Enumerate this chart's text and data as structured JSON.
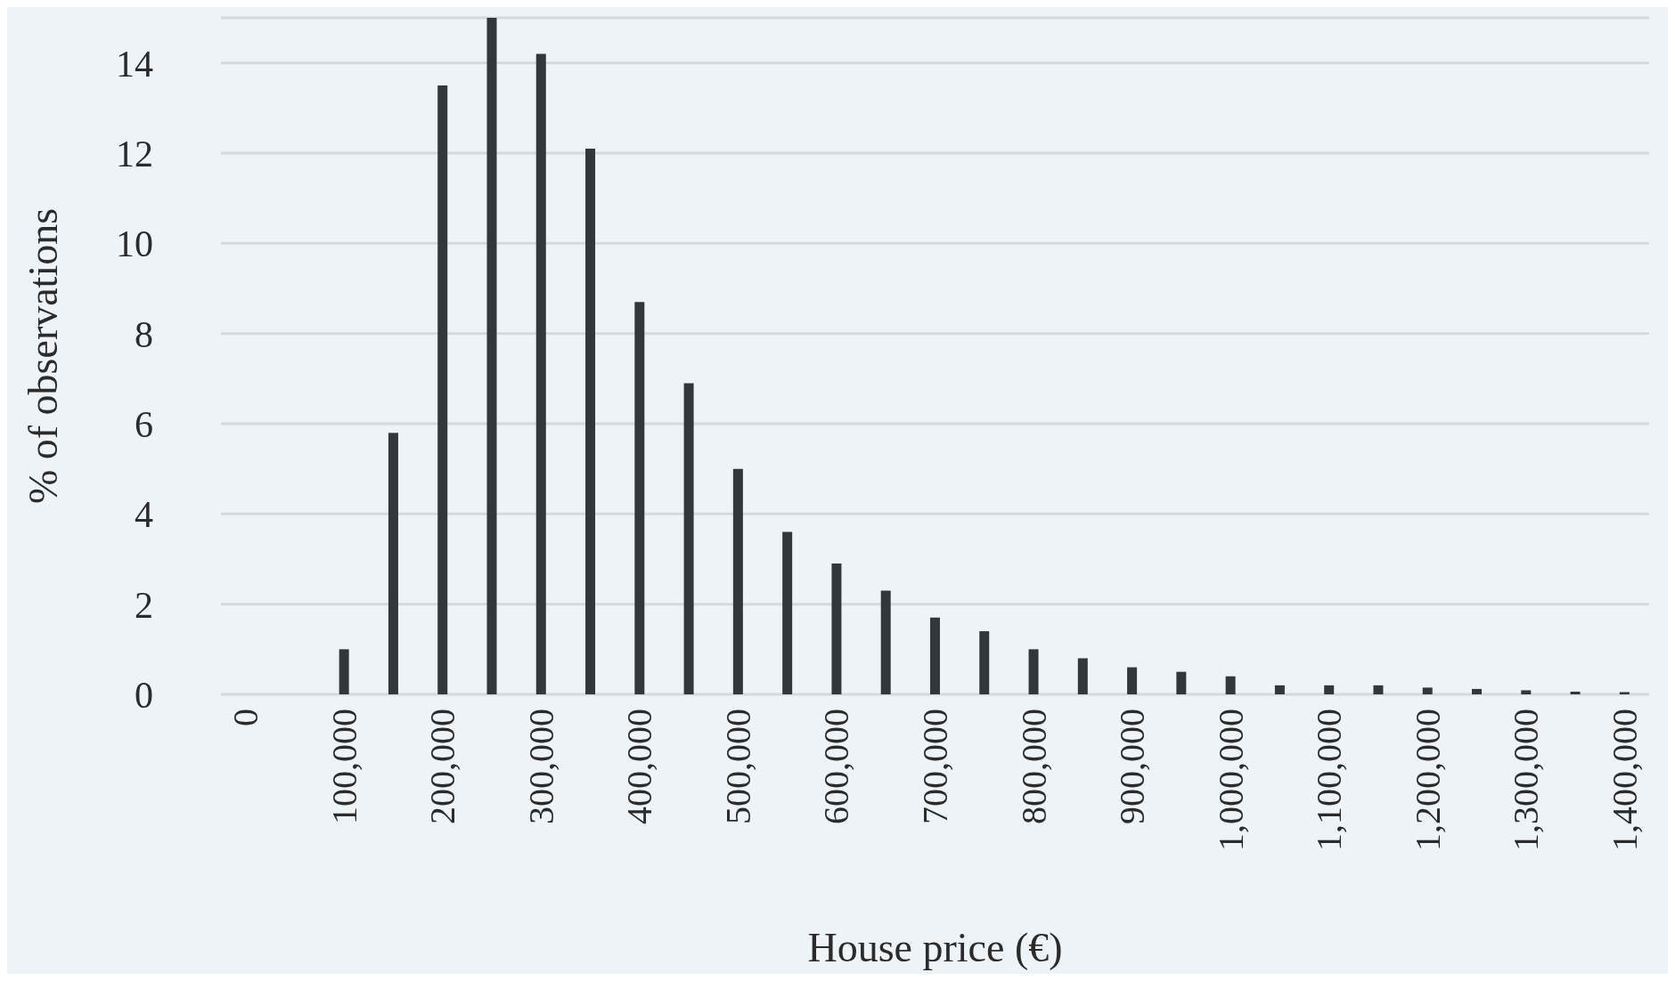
{
  "chart_data": {
    "type": "bar",
    "xlabel": "House price (€)",
    "ylabel": "% of observations",
    "categories": [
      "0",
      null,
      "100,000",
      null,
      "200,000",
      null,
      "300,000",
      null,
      "400,000",
      null,
      "500,000",
      null,
      "600,000",
      null,
      "700,000",
      null,
      "800,000",
      null,
      "900,000",
      null,
      "1,000,000",
      null,
      "1,100,000",
      null,
      "1,200,000",
      null,
      "1,300,000",
      null,
      "1,400,000"
    ],
    "values": [
      null,
      null,
      1.0,
      5.8,
      13.5,
      15.0,
      14.2,
      12.1,
      8.7,
      6.9,
      5.0,
      3.6,
      2.9,
      2.3,
      1.7,
      1.4,
      1.0,
      0.8,
      0.6,
      0.5,
      0.4,
      0.2,
      0.2,
      0.2,
      0.15,
      0.12,
      0.09,
      0.06,
      0.05
    ],
    "color": "#33373b",
    "ylim": [
      0,
      15
    ],
    "yticks": [
      0,
      2,
      4,
      6,
      8,
      10,
      12,
      14
    ],
    "grid": "y"
  }
}
